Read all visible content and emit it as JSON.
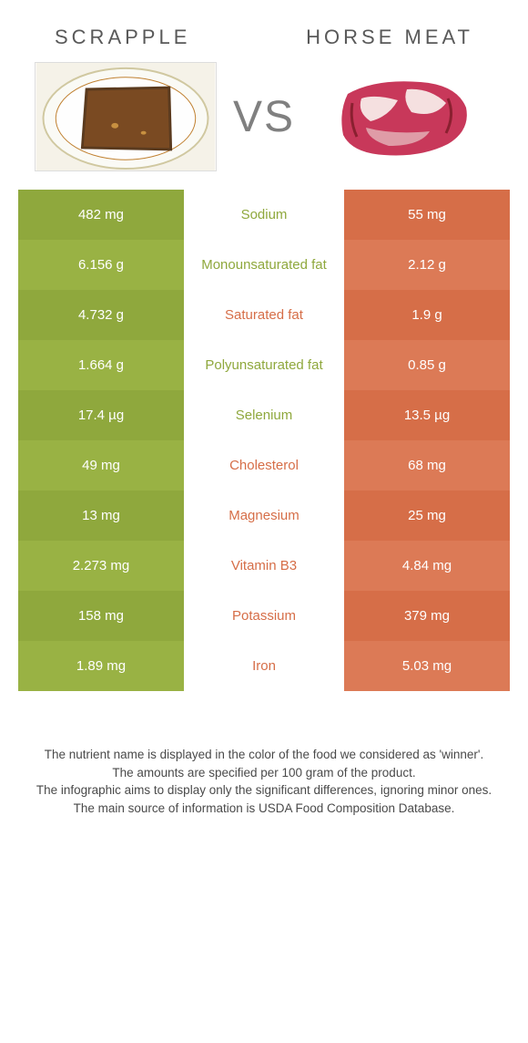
{
  "colors": {
    "green_base": "#8fa83d",
    "green_alt": "#99b244",
    "orange_base": "#d66e48",
    "orange_alt": "#dc7a56",
    "green_text": "#8fa83d",
    "orange_text": "#d66e48",
    "header_text": "#595959",
    "vs_text": "#808080",
    "footer_text": "#4a4a4a"
  },
  "header": {
    "left": "SCRAPPLE",
    "right": "HORSE MEAT",
    "vs": "VS"
  },
  "rows": [
    {
      "left": "482 mg",
      "mid": "Sodium",
      "right": "55 mg",
      "winner": "left"
    },
    {
      "left": "6.156 g",
      "mid": "Monounsaturated fat",
      "right": "2.12 g",
      "winner": "left"
    },
    {
      "left": "4.732 g",
      "mid": "Saturated fat",
      "right": "1.9 g",
      "winner": "right"
    },
    {
      "left": "1.664 g",
      "mid": "Polyunsaturated fat",
      "right": "0.85 g",
      "winner": "left"
    },
    {
      "left": "17.4 µg",
      "mid": "Selenium",
      "right": "13.5 µg",
      "winner": "left"
    },
    {
      "left": "49 mg",
      "mid": "Cholesterol",
      "right": "68 mg",
      "winner": "right"
    },
    {
      "left": "13 mg",
      "mid": "Magnesium",
      "right": "25 mg",
      "winner": "right"
    },
    {
      "left": "2.273 mg",
      "mid": "Vitamin B3",
      "right": "4.84 mg",
      "winner": "right"
    },
    {
      "left": "158 mg",
      "mid": "Potassium",
      "right": "379 mg",
      "winner": "right"
    },
    {
      "left": "1.89 mg",
      "mid": "Iron",
      "right": "5.03 mg",
      "winner": "right"
    }
  ],
  "footer": {
    "l1": "The nutrient name is displayed in the color of the food we considered as 'winner'.",
    "l2": "The amounts are specified per 100 gram of the product.",
    "l3": "The infographic aims to display only the significant differences, ignoring minor ones.",
    "l4": "The main source of information is USDA Food Composition Database."
  }
}
